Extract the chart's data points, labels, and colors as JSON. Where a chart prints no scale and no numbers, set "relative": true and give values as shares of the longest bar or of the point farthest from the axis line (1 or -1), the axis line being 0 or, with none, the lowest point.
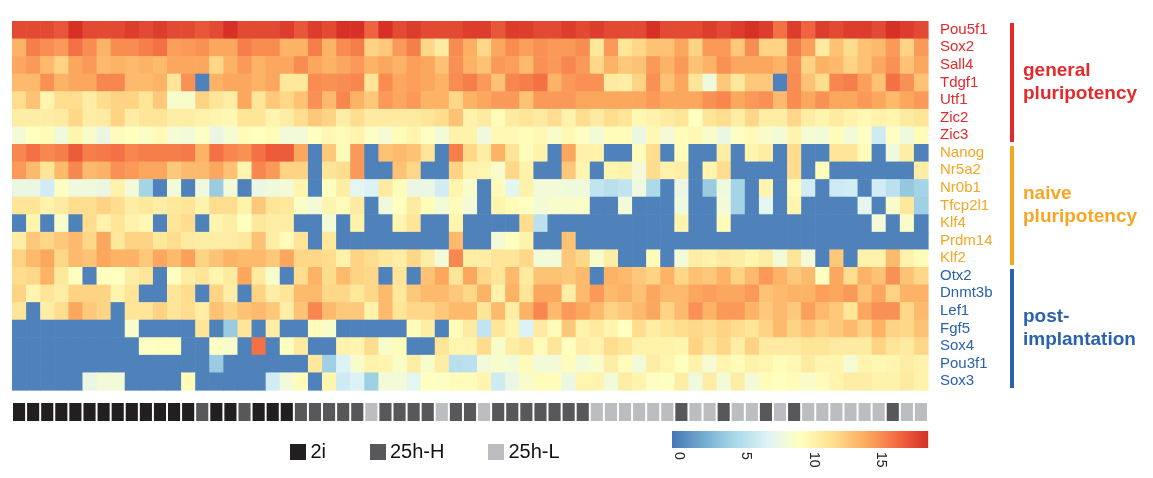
{
  "chart_data": [
    {
      "type": "heatmap",
      "categories": [
        null,
        null,
        null,
        null,
        null,
        null,
        null,
        null,
        null,
        null,
        null,
        null,
        null,
        null,
        null,
        null,
        null,
        null,
        null,
        null,
        null,
        null,
        null,
        null,
        null,
        null,
        null,
        null,
        null,
        null,
        null,
        null,
        null,
        null,
        null,
        null,
        null,
        null,
        null,
        null,
        null,
        null,
        null,
        null,
        null,
        null,
        null,
        null,
        null,
        null,
        null,
        null,
        null,
        null,
        null,
        null,
        null,
        null,
        null,
        null,
        null,
        null,
        null,
        null,
        null
      ],
      "y_categories": [
        "Pou5f1",
        "Sox2",
        "Sall4",
        "Tdgf1",
        "Utf1",
        "Zic2",
        "Zic3",
        "Nanog",
        "Nr5a2",
        "Nr0b1",
        "Tfcp2l1",
        "Klf4",
        "Prdm14",
        "Klf2",
        "Otx2",
        "Dnmt3b",
        "Lef1",
        "Fgf5",
        "Sox4",
        "Pou3f1",
        "Sox3"
      ],
      "cells": [
        [
          17.5,
          17.5,
          17.5,
          17,
          18.5,
          17.5,
          17.5,
          17.5,
          18,
          17.5,
          18,
          17.5,
          17.5,
          17,
          17.5,
          18.5,
          17.5,
          17.5,
          17.5,
          18,
          17,
          18,
          17.5,
          18.5,
          18.5,
          16.5,
          18.5,
          17.5,
          18,
          17.5,
          17.5,
          17.5,
          18,
          18,
          17,
          18,
          18,
          17.5,
          17.5,
          18,
          17.5,
          18,
          17.5,
          17.5,
          17.5,
          18.5,
          17.5,
          17.5,
          17.5,
          18,
          17.5,
          18,
          18.5,
          18,
          16,
          18,
          16.5,
          18,
          17.5,
          18,
          18,
          17.5,
          18.5,
          18,
          17.5
        ],
        [
          13.5,
          15.5,
          15,
          14.5,
          16,
          15,
          13.5,
          15,
          15,
          15.5,
          16,
          14.3,
          14.5,
          14.8,
          14,
          14,
          15.5,
          15,
          15,
          13.5,
          13.5,
          15.5,
          13.5,
          15,
          15.5,
          12,
          12.5,
          14.5,
          15.5,
          11.8,
          10.5,
          15,
          13.7,
          11.8,
          14,
          15,
          14.3,
          14.8,
          14.5,
          14.5,
          15,
          10.8,
          14.5,
          11,
          11.8,
          12.8,
          12.8,
          14,
          12,
          14.5,
          14.5,
          12.5,
          15,
          12,
          12,
          15.5,
          14.3,
          10.5,
          12.8,
          11.5,
          12.8,
          13.2,
          14.5,
          12,
          14.5
        ],
        [
          14,
          14.5,
          13.2,
          12,
          14,
          14.5,
          13.2,
          13.5,
          13.2,
          13.5,
          13.2,
          14,
          14,
          14,
          11.8,
          13.5,
          14.5,
          13.5,
          14,
          14,
          15,
          14,
          13.5,
          14,
          14.5,
          13.5,
          14,
          13.5,
          14.3,
          14,
          12.8,
          14.8,
          13.5,
          12.8,
          14.5,
          14.3,
          13.2,
          14.8,
          14.5,
          15.2,
          14.5,
          11.8,
          13.5,
          12.5,
          12.8,
          14.5,
          13.5,
          14.5,
          12.8,
          13.5,
          14.8,
          14,
          14,
          14,
          13.5,
          14.8,
          12,
          13.5,
          13.2,
          12,
          12.8,
          14,
          14.8,
          12.8,
          14
        ],
        [
          13.2,
          13.2,
          14.8,
          13.5,
          14,
          14,
          15.2,
          15.2,
          13.2,
          13.2,
          13.5,
          11,
          14.8,
          0,
          13.5,
          14,
          14,
          13.5,
          14,
          10.8,
          10.8,
          15,
          14.8,
          15,
          15.2,
          11,
          15,
          14,
          14.3,
          14,
          13.5,
          15,
          15.5,
          14.5,
          12.8,
          15.2,
          15.5,
          16,
          13.5,
          14.5,
          14.8,
          14.8,
          10.5,
          10.3,
          12,
          14.8,
          12.8,
          14,
          11,
          7.8,
          12.5,
          10.8,
          12.5,
          12.5,
          0,
          15,
          12.8,
          11.5,
          15.2,
          15.5,
          14.3,
          12.8,
          16,
          14.8,
          12.8
        ],
        [
          11.5,
          12.8,
          9.8,
          11.5,
          11.5,
          10.3,
          11.5,
          12,
          12,
          11,
          12.5,
          8.5,
          8.5,
          12,
          11,
          10.3,
          14,
          11,
          12.5,
          11.8,
          12.8,
          14.8,
          13.2,
          15.2,
          13.5,
          12.5,
          14.5,
          14,
          14.5,
          13.5,
          13.5,
          11.8,
          13.5,
          14,
          14.5,
          14.5,
          12.8,
          14.5,
          14.5,
          14.5,
          14,
          14,
          14,
          14,
          14,
          14.5,
          14,
          14,
          14,
          14.8,
          15.2,
          14,
          14.5,
          14.8,
          13.2,
          15,
          14,
          14.8,
          14,
          14,
          14.5,
          14,
          13.2,
          14,
          14.5
        ],
        [
          10.3,
          10.3,
          10.3,
          10.5,
          11.8,
          10.3,
          10.5,
          12,
          10.3,
          11,
          11,
          10.3,
          10.3,
          10,
          9.8,
          9.5,
          11,
          11,
          9.8,
          10.3,
          11.5,
          12.5,
          12,
          10.3,
          11.5,
          10.5,
          10.5,
          10.5,
          10.5,
          11,
          11.5,
          12.8,
          10,
          10.5,
          9.3,
          10.5,
          11,
          10.5,
          11.5,
          10,
          11.5,
          10.5,
          11.5,
          11,
          9.5,
          10,
          10.5,
          11,
          9,
          11,
          11.5,
          10.3,
          11.8,
          10.3,
          10.3,
          11.8,
          10.3,
          9.8,
          10.5,
          10,
          9.5,
          10,
          9.8,
          10.5,
          11
        ],
        [
          8,
          9,
          9.3,
          7.8,
          9.8,
          8.5,
          7.5,
          9.2,
          9,
          8.7,
          9.4,
          8.2,
          8,
          8.8,
          7.5,
          8.2,
          9.3,
          9,
          9.3,
          8,
          8,
          9,
          9.5,
          9.3,
          9.8,
          8.8,
          8.2,
          9.3,
          9.8,
          8.8,
          8,
          10,
          10,
          7.8,
          9.5,
          9.5,
          9.3,
          9.5,
          8.5,
          9.5,
          8.8,
          8,
          9.3,
          9.3,
          7.5,
          9.5,
          8,
          9.3,
          9.5,
          8.5,
          7.5,
          8.8,
          9.4,
          8.5,
          8,
          9.8,
          8.2,
          8,
          9.3,
          8,
          8.8,
          5.8,
          8.8,
          7.8,
          9.3
        ],
        [
          15.2,
          16,
          15.2,
          15.5,
          16.8,
          15.5,
          15.7,
          16,
          15.2,
          15.5,
          15.5,
          15.5,
          15.7,
          13.5,
          16,
          15.2,
          14.8,
          16,
          16.8,
          16.8,
          14,
          0,
          12.5,
          9.3,
          14.5,
          0,
          12.8,
          13.2,
          12.8,
          11,
          0,
          15.5,
          11.8,
          10.3,
          13.5,
          11,
          9.3,
          10,
          0,
          14,
          10,
          10,
          0,
          0,
          9.3,
          11.5,
          0,
          9.3,
          0,
          0,
          10.3,
          0,
          9.8,
          10.3,
          0,
          11.5,
          0,
          0,
          11,
          11,
          9.3,
          0,
          7.8,
          10.3,
          0
        ],
        [
          14.5,
          13.2,
          11,
          13.2,
          15.2,
          13.2,
          13.5,
          14.8,
          14.5,
          14,
          14,
          12.5,
          13.2,
          13.2,
          14,
          12.8,
          9.8,
          15.2,
          14.5,
          12,
          12,
          0,
          11,
          11.5,
          14.5,
          0,
          0,
          12.8,
          11.8,
          0,
          0,
          12,
          10,
          9.8,
          8.5,
          11.8,
          10,
          0,
          0,
          12.5,
          9.8,
          0,
          9.8,
          10,
          8,
          11.5,
          10,
          10.3,
          0,
          9.8,
          11.5,
          0,
          0,
          0,
          0,
          11.5,
          0,
          9.3,
          0,
          0,
          0,
          0,
          0,
          0,
          10.3
        ],
        [
          7.5,
          7.5,
          6,
          8.8,
          7.8,
          7.8,
          7.5,
          10,
          8,
          4,
          0,
          8,
          0,
          7.8,
          3.5,
          8,
          0,
          7.5,
          7.8,
          8,
          9.8,
          0,
          9,
          10.3,
          7,
          6.5,
          10.5,
          9.3,
          7.5,
          7.5,
          6,
          9.8,
          8.5,
          0,
          9.3,
          7,
          10,
          8,
          8,
          7.8,
          7.8,
          5.3,
          4.8,
          5.3,
          7.8,
          4.3,
          0,
          7.5,
          0,
          3.5,
          7.8,
          4,
          0,
          9.8,
          0,
          9.3,
          6,
          0,
          5.8,
          6,
          0,
          6,
          5,
          3.3,
          4
        ],
        [
          11,
          11,
          10,
          10.5,
          11.5,
          11.5,
          12,
          11.5,
          10.3,
          10.8,
          10.3,
          10.8,
          11,
          10,
          11.5,
          11.5,
          10,
          12.5,
          11,
          10.8,
          8.7,
          8,
          9.8,
          9.3,
          10.5,
          0,
          7.8,
          9,
          10.5,
          9.3,
          8,
          9.3,
          8,
          0,
          9.8,
          9.3,
          9,
          8,
          8.5,
          8.5,
          8.7,
          0,
          0,
          8,
          0,
          0,
          0,
          7.8,
          0,
          0,
          8,
          4,
          0,
          7,
          0,
          9.8,
          0,
          0,
          0,
          0,
          7,
          0,
          8.5,
          10.8,
          3.7
        ],
        [
          0,
          9.8,
          0,
          8.5,
          0,
          11.5,
          10,
          11,
          10,
          9.5,
          0,
          11,
          11.5,
          0,
          9.8,
          10.3,
          9,
          10.8,
          10.3,
          10.3,
          0,
          0,
          8,
          0,
          10,
          0,
          0,
          9.8,
          11,
          0,
          0,
          9.8,
          0,
          0,
          0,
          0,
          11.5,
          5,
          0,
          0,
          0,
          0,
          0,
          0,
          0,
          0,
          0,
          9.8,
          0,
          0,
          9.3,
          0,
          0,
          0,
          0,
          0,
          0,
          0,
          0,
          0,
          0,
          8,
          0,
          8.5,
          0
        ],
        [
          10.3,
          12.5,
          11.8,
          12.5,
          13.2,
          11.8,
          14,
          10.8,
          12,
          12,
          10.8,
          11.5,
          10.5,
          10.3,
          10.3,
          10.3,
          10.8,
          12.8,
          10.3,
          9.3,
          11,
          0,
          10.8,
          0,
          0,
          0,
          0,
          0,
          0,
          0,
          0,
          13.2,
          0,
          0,
          8,
          9,
          10,
          0,
          0,
          12.8,
          0,
          0,
          0,
          0,
          0,
          0,
          0,
          0,
          0,
          0,
          0,
          0,
          0,
          0,
          0,
          0,
          0,
          0,
          0,
          0,
          0,
          0,
          0,
          0,
          0
        ],
        [
          12,
          13.2,
          14,
          11.8,
          13.2,
          12.8,
          14,
          13.5,
          13.5,
          12.5,
          14,
          13.2,
          14.3,
          12,
          12.8,
          13.5,
          13.2,
          13.2,
          12.5,
          14,
          11.8,
          11.8,
          11.5,
          10,
          12,
          11.5,
          10.8,
          10.3,
          11.8,
          10.3,
          8,
          15.2,
          10.3,
          10.3,
          11,
          11,
          11.8,
          8,
          8,
          12.5,
          11.8,
          8.5,
          10.3,
          0,
          0,
          9.3,
          0,
          8,
          10.3,
          10,
          10.5,
          10.3,
          9.8,
          10.3,
          8,
          11,
          8,
          0,
          12.5,
          0,
          10,
          10,
          13.2,
          10,
          9.3
        ],
        [
          11.5,
          11.8,
          13.5,
          10.8,
          9,
          0,
          9,
          9,
          10.3,
          11,
          0,
          9,
          10.3,
          11,
          9.8,
          10.5,
          14,
          10.5,
          8.5,
          0,
          11.5,
          13.5,
          11.5,
          13.2,
          12,
          11.8,
          0,
          11,
          0,
          12.8,
          14,
          11,
          14,
          11.8,
          11,
          13.2,
          10.5,
          12.8,
          12.8,
          12.5,
          13.2,
          0,
          13.5,
          13.2,
          12.5,
          12,
          13.5,
          11.8,
          12.8,
          12.5,
          13.5,
          12,
          13.2,
          14.5,
          13.5,
          12.5,
          13.2,
          9,
          14,
          11.5,
          13.5,
          12.8,
          14.8,
          12.8,
          11.8
        ],
        [
          12,
          9.8,
          11,
          10.3,
          12,
          12,
          12,
          9.8,
          11,
          0,
          0,
          11,
          11.5,
          0,
          12,
          10.3,
          0,
          12,
          10.3,
          11,
          13.2,
          13.2,
          11.8,
          11.8,
          10.8,
          11.8,
          13.2,
          10.8,
          12.5,
          13.2,
          13.2,
          12.5,
          11.8,
          13.5,
          10,
          13.5,
          11,
          14,
          14,
          10.3,
          13.2,
          14.5,
          13.2,
          13.5,
          12.8,
          14,
          13.2,
          13.2,
          14,
          14.3,
          14,
          14,
          14.5,
          12.8,
          13.2,
          13.5,
          13.5,
          14.3,
          14,
          14.5,
          12.8,
          14,
          12,
          13.5,
          13.5
        ],
        [
          11,
          0,
          10.3,
          11.5,
          14,
          12.5,
          12,
          0,
          11,
          11,
          12,
          11,
          11.5,
          10.3,
          12.8,
          12,
          12.8,
          13.2,
          12.5,
          10.3,
          12.8,
          15.2,
          13.2,
          12.5,
          12.5,
          10,
          13.2,
          11,
          11.8,
          11.8,
          12.5,
          13.2,
          13.2,
          11,
          13.2,
          10.3,
          13.5,
          15.2,
          13.2,
          14.5,
          14,
          13.2,
          12,
          12.5,
          13.2,
          14,
          12,
          13.2,
          14.8,
          13.5,
          14.5,
          14.5,
          13.5,
          12.5,
          13.2,
          12.5,
          14.3,
          13.2,
          12.5,
          11,
          14,
          14.8,
          14.8,
          11.8,
          13.2
        ],
        [
          0,
          0,
          0,
          0,
          0,
          0,
          0,
          0,
          8.5,
          0,
          0,
          0,
          0,
          11,
          0,
          3.5,
          11,
          0,
          10.3,
          0,
          0,
          9.2,
          8.5,
          0,
          0,
          0,
          0,
          0,
          9.3,
          10.3,
          0,
          9.3,
          10.5,
          5.3,
          11,
          9.8,
          6.5,
          10.5,
          9.3,
          12.5,
          10,
          10.5,
          9.8,
          9,
          11.5,
          10.3,
          11,
          11.5,
          11.8,
          11.5,
          12,
          11.5,
          11,
          12,
          13.2,
          12,
          12.8,
          12,
          12.5,
          13.2,
          12,
          13.5,
          12,
          11.8,
          12.8
        ],
        [
          0,
          0,
          0,
          0,
          0,
          0,
          0,
          0,
          0,
          8.8,
          9,
          9,
          0,
          0,
          8.8,
          8.5,
          0,
          16,
          0,
          9,
          10.5,
          0,
          0,
          10,
          9.8,
          11.5,
          8.5,
          9.3,
          0,
          0,
          11,
          9.8,
          9.8,
          11.5,
          8.5,
          10.3,
          11,
          9.3,
          11,
          9,
          10.3,
          10,
          11.5,
          11,
          10,
          10,
          10,
          9.8,
          12,
          11,
          11.8,
          10.3,
          12,
          10.5,
          10.5,
          10.5,
          11,
          11,
          10.5,
          10.5,
          10.5,
          12,
          11,
          10.5,
          11.8
        ],
        [
          0,
          0,
          0,
          0,
          0,
          0,
          0,
          0,
          0,
          0,
          0,
          0,
          0,
          0,
          3.5,
          0,
          0,
          0,
          0,
          0,
          0,
          10.8,
          3.7,
          6.5,
          8.5,
          10,
          9.8,
          8.7,
          10.3,
          8.5,
          10.3,
          4.8,
          5,
          8,
          8.5,
          8,
          9.3,
          8,
          8,
          9.3,
          8,
          8.5,
          10.3,
          9.2,
          8,
          10.3,
          9.8,
          9,
          10,
          8.2,
          9.8,
          9.3,
          10,
          9.8,
          9.3,
          9.5,
          10.5,
          9.8,
          9.8,
          8.2,
          9.8,
          9.5,
          9.8,
          10.3,
          10
        ],
        [
          0,
          0,
          0,
          0,
          0,
          7.5,
          8,
          8,
          0,
          0,
          0,
          0,
          9.3,
          0,
          0,
          0,
          0,
          0,
          6,
          8,
          9.2,
          0,
          9.8,
          5.8,
          6.5,
          3.7,
          8,
          8,
          7,
          9,
          8.8,
          9.3,
          9.3,
          9.8,
          5.8,
          7.5,
          8.5,
          9.3,
          9.3,
          7.5,
          9.8,
          9.8,
          8,
          10.3,
          9.8,
          8.8,
          9,
          10.3,
          7.8,
          10.3,
          8,
          10.3,
          8,
          9.3,
          9,
          9.3,
          8.5,
          9.2,
          9.8,
          10.3,
          10.3,
          10,
          10,
          10.5,
          10
        ]
      ],
      "clim": [
        -0.5,
        18.5
      ],
      "cticks": [
        0,
        5,
        10,
        15
      ],
      "annotations": [
        "general pluripotency",
        "naive pluripotency",
        "post-implantation"
      ]
    },
    {
      "type": "bar",
      "stacked": true,
      "relative": true,
      "legend": "bottom",
      "categories": [
        null,
        null,
        null,
        null,
        null,
        null,
        null,
        null,
        null,
        null,
        null,
        null,
        null,
        null,
        null,
        null,
        null,
        null,
        null,
        null,
        null,
        null,
        null,
        null,
        null,
        null,
        null,
        null,
        null,
        null,
        null,
        null,
        null,
        null,
        null,
        null,
        null,
        null,
        null,
        null,
        null,
        null,
        null,
        null,
        null,
        null,
        null,
        null,
        null,
        null,
        null,
        null,
        null,
        null,
        null,
        null,
        null,
        null,
        null,
        null,
        null,
        null,
        null,
        null,
        null
      ],
      "series": [
        {
          "name": "2i",
          "color": "#231f20",
          "values": [
            1,
            1,
            1,
            1,
            1,
            1,
            1,
            1,
            1,
            1,
            1,
            1,
            1,
            null,
            1,
            1,
            null,
            1,
            1,
            1,
            null,
            null,
            null,
            null,
            null,
            null,
            null,
            null,
            null,
            null,
            null,
            null,
            null,
            null,
            null,
            null,
            null,
            null,
            null,
            null,
            null,
            null,
            null,
            null,
            null,
            null,
            null,
            null,
            null,
            null,
            null,
            null,
            null,
            null,
            null,
            null,
            null,
            null,
            null,
            null,
            null,
            null,
            null,
            null,
            null
          ]
        },
        {
          "name": "25h-H",
          "color": "#58585a",
          "values": [
            null,
            null,
            null,
            null,
            null,
            null,
            null,
            null,
            null,
            null,
            null,
            null,
            null,
            1,
            null,
            null,
            1,
            null,
            null,
            null,
            1,
            1,
            1,
            1,
            1,
            null,
            1,
            1,
            1,
            1,
            null,
            1,
            1,
            null,
            1,
            1,
            1,
            1,
            1,
            1,
            1,
            null,
            null,
            null,
            null,
            null,
            null,
            1,
            null,
            null,
            1,
            null,
            null,
            1,
            null,
            1,
            null,
            null,
            null,
            null,
            null,
            null,
            1,
            null,
            null
          ]
        },
        {
          "name": "25h-L",
          "color": "#bcbdc0",
          "values": [
            null,
            null,
            null,
            null,
            null,
            null,
            null,
            null,
            null,
            null,
            null,
            null,
            null,
            null,
            null,
            null,
            null,
            null,
            null,
            null,
            null,
            null,
            null,
            null,
            null,
            1,
            null,
            null,
            null,
            null,
            1,
            null,
            null,
            1,
            null,
            null,
            null,
            null,
            null,
            null,
            null,
            1,
            1,
            1,
            1,
            1,
            1,
            null,
            1,
            1,
            null,
            1,
            1,
            null,
            1,
            null,
            1,
            1,
            1,
            1,
            1,
            1,
            null,
            1,
            1
          ]
        }
      ]
    }
  ]
}
